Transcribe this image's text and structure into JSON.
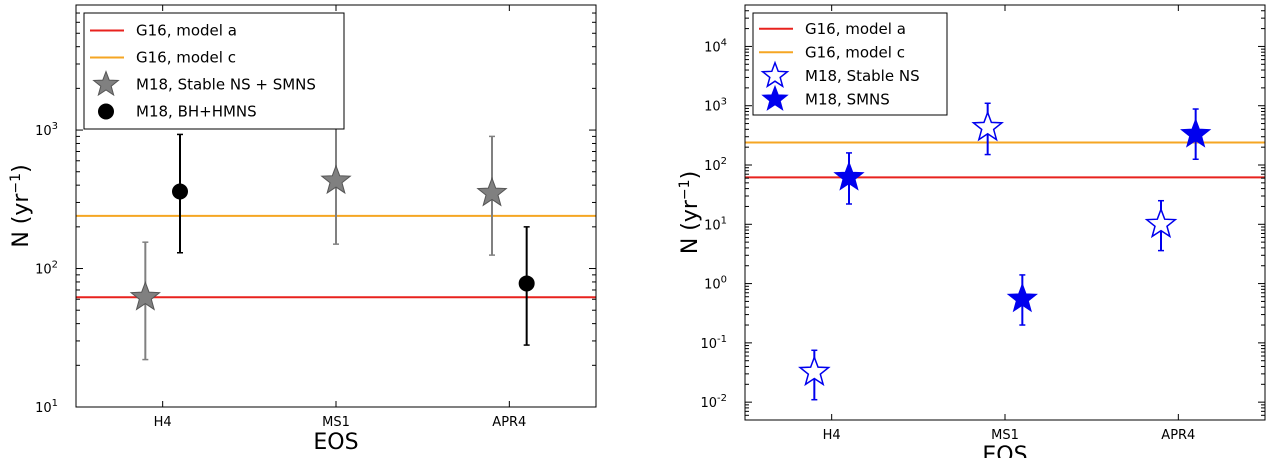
{
  "chart_data": [
    {
      "type": "scatter",
      "yscale": "log",
      "ylim": [
        10,
        8000
      ],
      "xlim": [
        0.5,
        3.5
      ],
      "categories": [
        "H4",
        "MS1",
        "APR4"
      ],
      "xlabel": "EOS",
      "ylabel": {
        "base": "N (yr",
        "sup": "−1",
        "close": ")"
      },
      "yticks": [
        {
          "value": 10,
          "base": "10",
          "exp": "1"
        },
        {
          "value": 100,
          "base": "10",
          "exp": "2"
        },
        {
          "value": 1000,
          "base": "10",
          "exp": "3"
        }
      ],
      "legend_position": "upper-left",
      "colors": {
        "model_a": "#e8221e",
        "model_c": "#f5a623",
        "star": "#808080",
        "circle": "#000000"
      },
      "hlines": [
        {
          "key": "model_a",
          "name": "G16, model a",
          "value": 62
        },
        {
          "key": "model_c",
          "name": "G16, model c",
          "value": 240
        }
      ],
      "series": [
        {
          "name": "M18, Stable NS + SMNS",
          "marker": "star-filled",
          "color": "#808080",
          "points": [
            {
              "x": "H4",
              "offset": -0.1,
              "y": 62,
              "low": 22,
              "high": 155
            },
            {
              "x": "MS1",
              "offset": 0,
              "y": 430,
              "low": 150,
              "high": 1100
            },
            {
              "x": "APR4",
              "offset": -0.1,
              "y": 350,
              "low": 125,
              "high": 900
            }
          ]
        },
        {
          "name": "M18, BH+HMNS",
          "marker": "circle",
          "color": "#000000",
          "points": [
            {
              "x": "H4",
              "offset": 0.1,
              "y": 360,
              "low": 130,
              "high": 930
            },
            {
              "x": "APR4",
              "offset": 0.1,
              "y": 78,
              "low": 28,
              "high": 200
            }
          ]
        }
      ]
    },
    {
      "type": "scatter",
      "yscale": "log",
      "ylim": [
        0.005,
        50000
      ],
      "xlim": [
        0.5,
        3.5
      ],
      "categories": [
        "H4",
        "MS1",
        "APR4"
      ],
      "xlabel": "EOS",
      "ylabel": {
        "base": "N (yr",
        "sup": "−1",
        "close": ")"
      },
      "yticks": [
        {
          "value": 0.01,
          "base": "10",
          "exp": "-2"
        },
        {
          "value": 0.1,
          "base": "10",
          "exp": "-1"
        },
        {
          "value": 1,
          "base": "10",
          "exp": "0"
        },
        {
          "value": 10,
          "base": "10",
          "exp": "1"
        },
        {
          "value": 100,
          "base": "10",
          "exp": "2"
        },
        {
          "value": 1000,
          "base": "10",
          "exp": "3"
        },
        {
          "value": 10000,
          "base": "10",
          "exp": "4"
        }
      ],
      "legend_position": "upper-left",
      "colors": {
        "model_a": "#e8221e",
        "model_c": "#f5a623",
        "star": "#0000ee"
      },
      "hlines": [
        {
          "key": "model_a",
          "name": "G16, model a",
          "value": 62
        },
        {
          "key": "model_c",
          "name": "G16, model c",
          "value": 240
        }
      ],
      "series": [
        {
          "name": "M18, Stable NS",
          "marker": "star-open",
          "color": "#0000ee",
          "points": [
            {
              "x": "H4",
              "offset": -0.1,
              "y": 0.032,
              "low": 0.011,
              "high": 0.075
            },
            {
              "x": "MS1",
              "offset": -0.1,
              "y": 430,
              "low": 150,
              "high": 1100
            },
            {
              "x": "APR4",
              "offset": -0.1,
              "y": 10,
              "low": 3.6,
              "high": 25
            }
          ]
        },
        {
          "name": "M18, SMNS",
          "marker": "star-filled",
          "color": "#0000ee",
          "points": [
            {
              "x": "H4",
              "offset": 0.1,
              "y": 62,
              "low": 22,
              "high": 160
            },
            {
              "x": "MS1",
              "offset": 0.1,
              "y": 0.55,
              "low": 0.2,
              "high": 1.4
            },
            {
              "x": "APR4",
              "offset": 0.1,
              "y": 330,
              "low": 125,
              "high": 880
            }
          ]
        }
      ]
    }
  ]
}
